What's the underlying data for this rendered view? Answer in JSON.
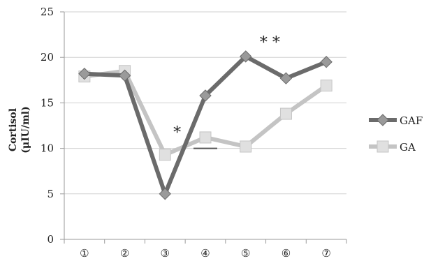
{
  "chart_data": {
    "type": "line",
    "categories": [
      "①",
      "②",
      "③",
      "④",
      "⑤",
      "⑥",
      "⑦"
    ],
    "series": [
      {
        "name": "GAF",
        "values": [
          18.2,
          18.0,
          5.0,
          15.8,
          20.1,
          17.7,
          19.5
        ],
        "color": "#6b6b6b",
        "marker": "diamond"
      },
      {
        "name": "GA",
        "values": [
          17.9,
          18.5,
          9.3,
          11.2,
          10.2,
          13.8,
          16.9
        ],
        "color": "#c4c4c4",
        "marker": "square"
      }
    ],
    "ylabel_line1": "Cortisol",
    "ylabel_line2": "(μIU/ml)",
    "ylim": [
      0,
      25
    ],
    "yticks": [
      0,
      5,
      10,
      15,
      20,
      25
    ],
    "grid": true,
    "legend_position": "right",
    "annotations": [
      {
        "text": "*",
        "category_index": 2.3,
        "y": 11.8
      },
      {
        "text": "* *",
        "category_index": 4.6,
        "y": 21.7
      }
    ],
    "underline_mark": {
      "category_index": 3,
      "y": 10.0
    }
  }
}
